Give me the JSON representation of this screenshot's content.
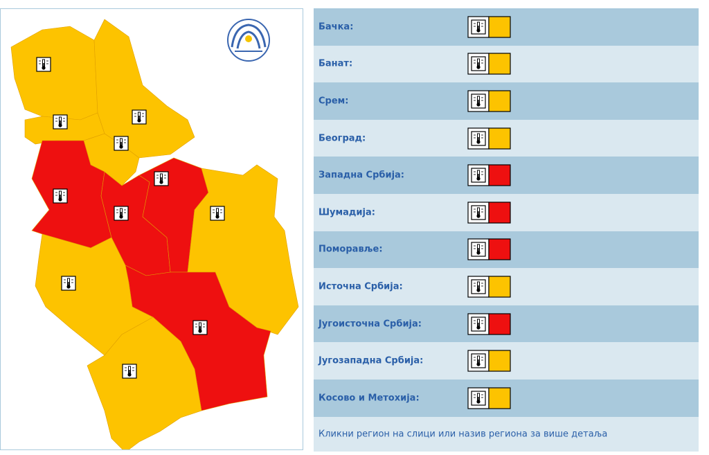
{
  "regions": [
    {
      "name": "Бачка:",
      "color": "#fdc300"
    },
    {
      "name": "Банат:",
      "color": "#fdc300"
    },
    {
      "name": "Срем:",
      "color": "#fdc300"
    },
    {
      "name": "Београд:",
      "color": "#fdc300"
    },
    {
      "name": "Западна Србија:",
      "color": "#ee1010"
    },
    {
      "name": "Шумадија:",
      "color": "#ee1010"
    },
    {
      "name": "Поморавље:",
      "color": "#ee1010"
    },
    {
      "name": "Источна Србија:",
      "color": "#fdc300"
    },
    {
      "name": "Југоисточна Србија:",
      "color": "#ee1010"
    },
    {
      "name": "Југозападна Србија:",
      "color": "#fdc300"
    },
    {
      "name": "Косово и Метохија:",
      "color": "#fdc300"
    }
  ],
  "footer": "Кликни регион на слици или назив региона за више детаља"
}
